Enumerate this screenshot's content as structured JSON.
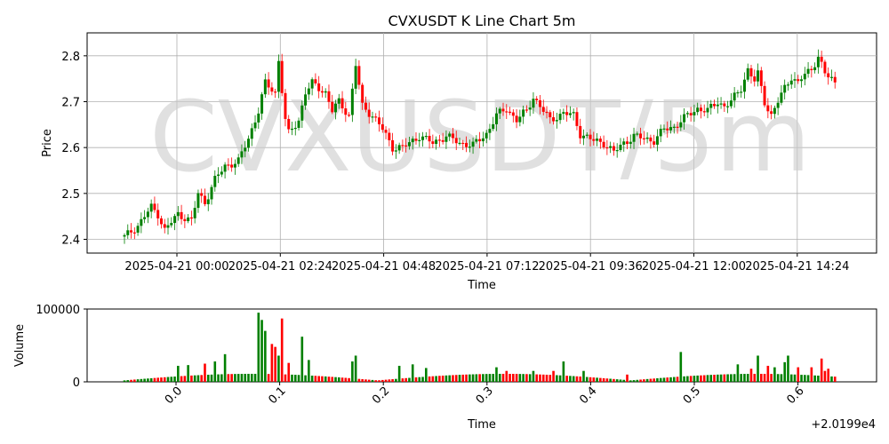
{
  "chart_data": [
    {
      "type": "candlestick",
      "title": "CVXUSDT K Line Chart 5m",
      "watermark": "CVXUSDT/5m",
      "xlabel": "Time",
      "ylabel": "Price",
      "x_start": "2025-04-20 22:10",
      "interval_minutes": 5,
      "x_ticks": [
        "2025-04-21 00:00",
        "2025-04-21 02:24",
        "2025-04-21 04:48",
        "2025-04-21 07:12",
        "2025-04-21 09:36",
        "2025-04-21 12:00",
        "2025-04-21 14:24"
      ],
      "y_ticks": [
        "2.4",
        "2.5",
        "2.6",
        "2.7",
        "2.8"
      ],
      "ylim": [
        2.37,
        2.85
      ],
      "grid": true,
      "colors": {
        "up": "#008000",
        "down": "#ff0000"
      },
      "anchors": [
        [
          0,
          2.405
        ],
        [
          4,
          2.43
        ],
        [
          8,
          2.47
        ],
        [
          10,
          2.455
        ],
        [
          12,
          2.42
        ],
        [
          16,
          2.455
        ],
        [
          20,
          2.44
        ],
        [
          22,
          2.5
        ],
        [
          24,
          2.48
        ],
        [
          27,
          2.53
        ],
        [
          30,
          2.56
        ],
        [
          34,
          2.57
        ],
        [
          37,
          2.62
        ],
        [
          40,
          2.68
        ],
        [
          42,
          2.74
        ],
        [
          45,
          2.72
        ],
        [
          46,
          2.79
        ],
        [
          48,
          2.66
        ],
        [
          49,
          2.63
        ],
        [
          52,
          2.66
        ],
        [
          54,
          2.72
        ],
        [
          56,
          2.74
        ],
        [
          58,
          2.73
        ],
        [
          60,
          2.72
        ],
        [
          62,
          2.68
        ],
        [
          64,
          2.7
        ],
        [
          67,
          2.67
        ],
        [
          69,
          2.78
        ],
        [
          71,
          2.69
        ],
        [
          74,
          2.67
        ],
        [
          77,
          2.64
        ],
        [
          80,
          2.6
        ],
        [
          83,
          2.6
        ],
        [
          85,
          2.61
        ],
        [
          88,
          2.625
        ],
        [
          92,
          2.61
        ],
        [
          96,
          2.625
        ],
        [
          100,
          2.61
        ],
        [
          104,
          2.605
        ],
        [
          108,
          2.63
        ],
        [
          111,
          2.67
        ],
        [
          114,
          2.685
        ],
        [
          117,
          2.66
        ],
        [
          120,
          2.68
        ],
        [
          122,
          2.71
        ],
        [
          124,
          2.69
        ],
        [
          127,
          2.66
        ],
        [
          131,
          2.675
        ],
        [
          134,
          2.67
        ],
        [
          136,
          2.63
        ],
        [
          140,
          2.615
        ],
        [
          143,
          2.61
        ],
        [
          146,
          2.59
        ],
        [
          149,
          2.61
        ],
        [
          152,
          2.625
        ],
        [
          155,
          2.62
        ],
        [
          158,
          2.615
        ],
        [
          161,
          2.64
        ],
        [
          164,
          2.645
        ],
        [
          168,
          2.67
        ],
        [
          171,
          2.685
        ],
        [
          174,
          2.68
        ],
        [
          177,
          2.7
        ],
        [
          179,
          2.69
        ],
        [
          181,
          2.7
        ],
        [
          184,
          2.73
        ],
        [
          186,
          2.77
        ],
        [
          188,
          2.745
        ],
        [
          189,
          2.76
        ],
        [
          191,
          2.7
        ],
        [
          193,
          2.67
        ],
        [
          195,
          2.7
        ],
        [
          197,
          2.73
        ],
        [
          199,
          2.755
        ],
        [
          201,
          2.74
        ],
        [
          203,
          2.76
        ],
        [
          205,
          2.77
        ],
        [
          207,
          2.8
        ],
        [
          209,
          2.76
        ],
        [
          211,
          2.75
        ],
        [
          212,
          2.74
        ]
      ],
      "ohlc_note": "open/close series derived from anchor closes",
      "volume": {
        "ylabel": "Volume",
        "xlabel": "Time",
        "y_ticks": [
          "0",
          "100000"
        ],
        "ylim": [
          0,
          100000
        ],
        "x_ticks": [
          "0.0",
          "0.1",
          "0.2",
          "0.3",
          "0.4",
          "0.5",
          "0.6"
        ],
        "offset_text": "+2.0199e4",
        "spikes": [
          [
            40,
            95000
          ],
          [
            41,
            85000
          ],
          [
            42,
            70000
          ],
          [
            44,
            52000
          ],
          [
            45,
            48000
          ],
          [
            46,
            36000
          ],
          [
            47,
            87000
          ],
          [
            49,
            26000
          ],
          [
            53,
            62000
          ],
          [
            30,
            38000
          ],
          [
            16,
            22000
          ],
          [
            19,
            23000
          ],
          [
            24,
            25000
          ],
          [
            27,
            28000
          ],
          [
            55,
            30000
          ],
          [
            69,
            36000
          ],
          [
            68,
            28000
          ],
          [
            82,
            22000
          ],
          [
            86,
            24000
          ],
          [
            90,
            19000
          ],
          [
            111,
            20000
          ],
          [
            114,
            15000
          ],
          [
            122,
            15000
          ],
          [
            128,
            15000
          ],
          [
            131,
            28000
          ],
          [
            137,
            15000
          ],
          [
            150,
            10000
          ],
          [
            166,
            41000
          ],
          [
            183,
            24000
          ],
          [
            187,
            18000
          ],
          [
            189,
            36000
          ],
          [
            192,
            22000
          ],
          [
            194,
            20000
          ],
          [
            197,
            27000
          ],
          [
            198,
            36000
          ],
          [
            201,
            20000
          ],
          [
            205,
            20000
          ],
          [
            208,
            32000
          ],
          [
            209,
            15000
          ],
          [
            210,
            18000
          ]
        ]
      }
    }
  ]
}
